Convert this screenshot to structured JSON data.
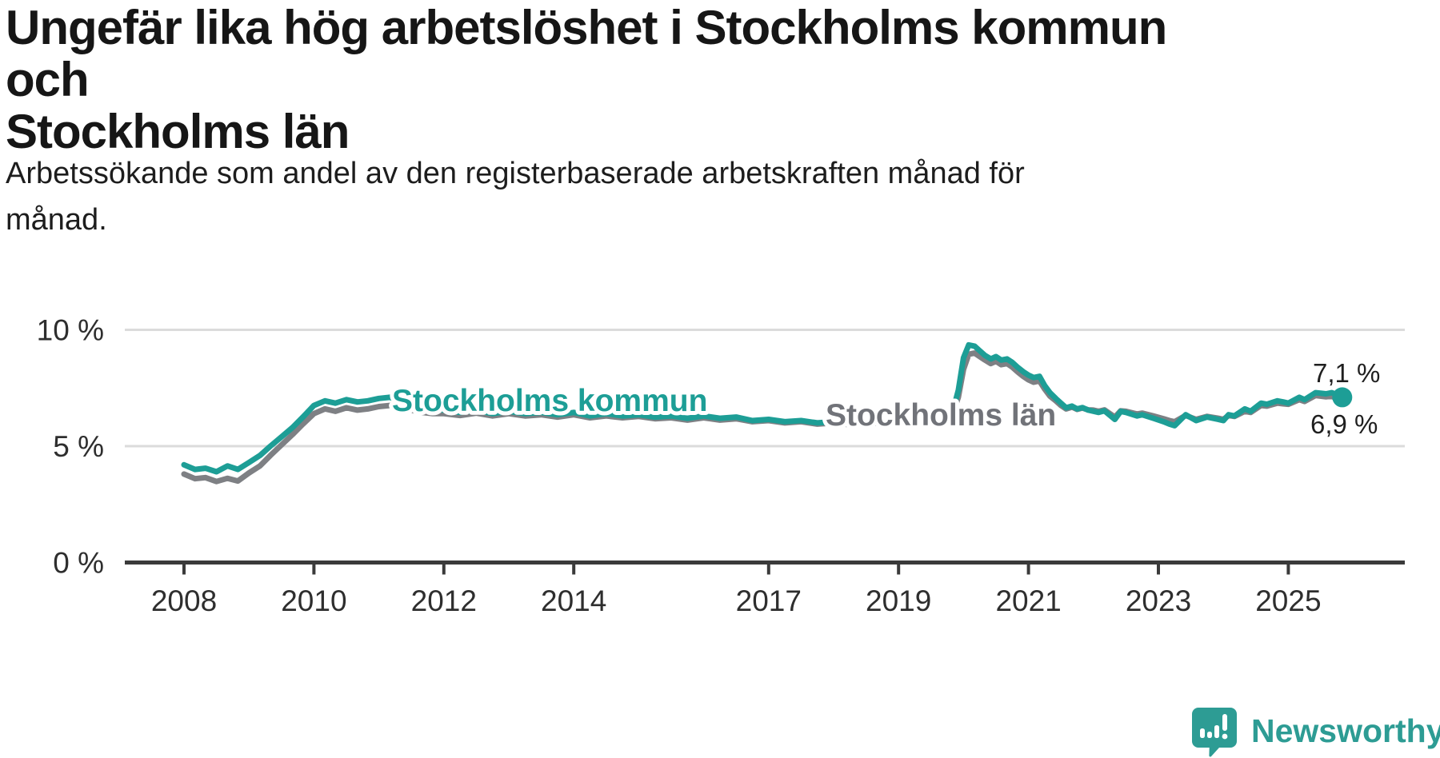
{
  "header": {
    "title_lines": [
      "Ungefär lika hög arbetslöshet i Stockholms kommun och",
      "Stockholms län"
    ],
    "subtitle_lines": [
      "Arbetssökande som andel av den registerbaserade arbetskraften månad för",
      "månad."
    ]
  },
  "footer": {
    "brand": "Newsworthy",
    "logo_icon": "newsworthy-speech-bubble-bar-chart-icon"
  },
  "colors": {
    "kommun": "#1d9e96",
    "lan_line": "#7e8084",
    "lan_label": "#717379",
    "grid": "#dbdbdb",
    "axis": "#3a3a3a",
    "tick_text": "#2e2e2e",
    "value_text": "#1f1f1f",
    "brand": "#2d9c94"
  },
  "chart_data": {
    "type": "line",
    "unit": "%",
    "grid": "horizontal-only",
    "legend_position": "inline-labels",
    "ylim": [
      0,
      10.9
    ],
    "xlim": [
      2007.1,
      2026.9
    ],
    "y_ticks": [
      0,
      5,
      10
    ],
    "y_tick_labels": [
      "0 %",
      "5 %",
      "10 %"
    ],
    "x_ticks": [
      2008,
      2010,
      2012,
      2014,
      2017,
      2019,
      2021,
      2023,
      2025
    ],
    "x_tick_labels": [
      "2008",
      "2010",
      "2012",
      "2014",
      "2017",
      "2019",
      "2021",
      "2023",
      "2025"
    ],
    "series": [
      {
        "name": "Stockholms län",
        "end_label": "6,9 %",
        "end_value": 6.9,
        "points": [
          [
            2008.0,
            3.8
          ],
          [
            2008.17,
            3.6
          ],
          [
            2008.33,
            3.65
          ],
          [
            2008.5,
            3.48
          ],
          [
            2008.67,
            3.62
          ],
          [
            2008.83,
            3.5
          ],
          [
            2009.0,
            3.85
          ],
          [
            2009.17,
            4.15
          ],
          [
            2009.33,
            4.6
          ],
          [
            2009.5,
            5.05
          ],
          [
            2009.67,
            5.5
          ],
          [
            2009.83,
            5.95
          ],
          [
            2010.0,
            6.4
          ],
          [
            2010.17,
            6.6
          ],
          [
            2010.33,
            6.5
          ],
          [
            2010.5,
            6.65
          ],
          [
            2010.67,
            6.55
          ],
          [
            2010.83,
            6.6
          ],
          [
            2011.0,
            6.7
          ],
          [
            2011.17,
            6.75
          ],
          [
            2011.33,
            6.65
          ],
          [
            2011.5,
            6.55
          ],
          [
            2011.67,
            6.45
          ],
          [
            2011.83,
            6.4
          ],
          [
            2012.0,
            6.4
          ],
          [
            2012.25,
            6.32
          ],
          [
            2012.5,
            6.42
          ],
          [
            2012.75,
            6.3
          ],
          [
            2013.0,
            6.4
          ],
          [
            2013.25,
            6.3
          ],
          [
            2013.5,
            6.35
          ],
          [
            2013.75,
            6.25
          ],
          [
            2014.0,
            6.35
          ],
          [
            2014.25,
            6.22
          ],
          [
            2014.5,
            6.3
          ],
          [
            2014.75,
            6.22
          ],
          [
            2015.0,
            6.28
          ],
          [
            2015.25,
            6.18
          ],
          [
            2015.5,
            6.22
          ],
          [
            2015.75,
            6.12
          ],
          [
            2016.0,
            6.22
          ],
          [
            2016.25,
            6.12
          ],
          [
            2016.5,
            6.18
          ],
          [
            2016.75,
            6.05
          ],
          [
            2017.0,
            6.1
          ],
          [
            2017.25,
            6.0
          ],
          [
            2017.5,
            6.05
          ],
          [
            2017.75,
            5.95
          ],
          [
            2018.0,
            6.0
          ],
          [
            2018.25,
            5.92
          ],
          [
            2018.5,
            6.0
          ],
          [
            2018.75,
            5.97
          ],
          [
            2019.0,
            6.07
          ],
          [
            2019.17,
            6.12
          ],
          [
            2019.33,
            6.07
          ],
          [
            2019.5,
            6.12
          ],
          [
            2019.67,
            6.17
          ],
          [
            2019.83,
            6.4
          ],
          [
            2019.92,
            7.1
          ],
          [
            2020.0,
            8.3
          ],
          [
            2020.08,
            8.95
          ],
          [
            2020.17,
            9.0
          ],
          [
            2020.25,
            8.85
          ],
          [
            2020.33,
            8.7
          ],
          [
            2020.42,
            8.55
          ],
          [
            2020.5,
            8.65
          ],
          [
            2020.58,
            8.5
          ],
          [
            2020.67,
            8.55
          ],
          [
            2020.75,
            8.4
          ],
          [
            2020.83,
            8.2
          ],
          [
            2020.92,
            8.0
          ],
          [
            2021.0,
            7.85
          ],
          [
            2021.08,
            7.75
          ],
          [
            2021.17,
            7.8
          ],
          [
            2021.25,
            7.45
          ],
          [
            2021.33,
            7.15
          ],
          [
            2021.42,
            6.95
          ],
          [
            2021.5,
            6.75
          ],
          [
            2021.58,
            6.6
          ],
          [
            2021.67,
            6.68
          ],
          [
            2021.75,
            6.58
          ],
          [
            2021.83,
            6.64
          ],
          [
            2021.92,
            6.56
          ],
          [
            2022.0,
            6.55
          ],
          [
            2022.08,
            6.5
          ],
          [
            2022.17,
            6.56
          ],
          [
            2022.33,
            6.25
          ],
          [
            2022.42,
            6.52
          ],
          [
            2022.5,
            6.5
          ],
          [
            2022.67,
            6.38
          ],
          [
            2022.75,
            6.42
          ],
          [
            2022.92,
            6.3
          ],
          [
            2023.08,
            6.18
          ],
          [
            2023.17,
            6.1
          ],
          [
            2023.25,
            6.05
          ],
          [
            2023.42,
            6.32
          ],
          [
            2023.58,
            6.15
          ],
          [
            2023.75,
            6.28
          ],
          [
            2023.92,
            6.2
          ],
          [
            2024.0,
            6.15
          ],
          [
            2024.08,
            6.32
          ],
          [
            2024.17,
            6.28
          ],
          [
            2024.33,
            6.5
          ],
          [
            2024.42,
            6.45
          ],
          [
            2024.58,
            6.75
          ],
          [
            2024.67,
            6.72
          ],
          [
            2024.83,
            6.85
          ],
          [
            2024.92,
            6.82
          ],
          [
            2025.0,
            6.8
          ],
          [
            2025.17,
            7.0
          ],
          [
            2025.25,
            6.92
          ],
          [
            2025.42,
            7.18
          ],
          [
            2025.58,
            7.12
          ],
          [
            2025.67,
            7.15
          ],
          [
            2025.83,
            6.9
          ]
        ]
      },
      {
        "name": "Stockholms kommun",
        "end_label": "7,1 %",
        "end_value": 7.1,
        "end_dot": true,
        "points": [
          [
            2008.0,
            4.2
          ],
          [
            2008.17,
            4.0
          ],
          [
            2008.33,
            4.05
          ],
          [
            2008.5,
            3.9
          ],
          [
            2008.67,
            4.15
          ],
          [
            2008.83,
            4.0
          ],
          [
            2009.0,
            4.3
          ],
          [
            2009.17,
            4.6
          ],
          [
            2009.33,
            5.0
          ],
          [
            2009.5,
            5.4
          ],
          [
            2009.67,
            5.8
          ],
          [
            2009.83,
            6.25
          ],
          [
            2010.0,
            6.75
          ],
          [
            2010.17,
            6.95
          ],
          [
            2010.33,
            6.85
          ],
          [
            2010.5,
            7.0
          ],
          [
            2010.67,
            6.9
          ],
          [
            2010.83,
            6.95
          ],
          [
            2011.0,
            7.05
          ],
          [
            2011.17,
            7.1
          ],
          [
            2011.33,
            6.95
          ],
          [
            2011.5,
            6.85
          ],
          [
            2011.67,
            6.7
          ],
          [
            2011.83,
            6.6
          ],
          [
            2012.0,
            6.55
          ],
          [
            2012.25,
            6.45
          ],
          [
            2012.5,
            6.55
          ],
          [
            2012.75,
            6.4
          ],
          [
            2013.0,
            6.5
          ],
          [
            2013.25,
            6.4
          ],
          [
            2013.5,
            6.45
          ],
          [
            2013.75,
            6.35
          ],
          [
            2014.0,
            6.45
          ],
          [
            2014.25,
            6.3
          ],
          [
            2014.5,
            6.4
          ],
          [
            2014.75,
            6.3
          ],
          [
            2015.0,
            6.35
          ],
          [
            2015.25,
            6.25
          ],
          [
            2015.5,
            6.3
          ],
          [
            2015.75,
            6.2
          ],
          [
            2016.0,
            6.3
          ],
          [
            2016.25,
            6.2
          ],
          [
            2016.5,
            6.25
          ],
          [
            2016.75,
            6.1
          ],
          [
            2017.0,
            6.15
          ],
          [
            2017.25,
            6.05
          ],
          [
            2017.5,
            6.1
          ],
          [
            2017.75,
            6.0
          ],
          [
            2018.0,
            6.05
          ],
          [
            2018.25,
            5.95
          ],
          [
            2018.5,
            6.05
          ],
          [
            2018.75,
            6.0
          ],
          [
            2019.0,
            6.1
          ],
          [
            2019.17,
            6.15
          ],
          [
            2019.33,
            6.1
          ],
          [
            2019.5,
            6.15
          ],
          [
            2019.67,
            6.2
          ],
          [
            2019.83,
            6.45
          ],
          [
            2019.92,
            7.4
          ],
          [
            2020.0,
            8.8
          ],
          [
            2020.08,
            9.35
          ],
          [
            2020.17,
            9.3
          ],
          [
            2020.25,
            9.1
          ],
          [
            2020.33,
            8.9
          ],
          [
            2020.42,
            8.75
          ],
          [
            2020.5,
            8.85
          ],
          [
            2020.58,
            8.7
          ],
          [
            2020.67,
            8.75
          ],
          [
            2020.75,
            8.6
          ],
          [
            2020.83,
            8.4
          ],
          [
            2020.92,
            8.2
          ],
          [
            2021.0,
            8.05
          ],
          [
            2021.08,
            7.95
          ],
          [
            2021.17,
            8.0
          ],
          [
            2021.25,
            7.6
          ],
          [
            2021.33,
            7.3
          ],
          [
            2021.42,
            7.05
          ],
          [
            2021.5,
            6.85
          ],
          [
            2021.58,
            6.65
          ],
          [
            2021.67,
            6.72
          ],
          [
            2021.75,
            6.6
          ],
          [
            2021.83,
            6.66
          ],
          [
            2021.92,
            6.55
          ],
          [
            2022.0,
            6.5
          ],
          [
            2022.08,
            6.45
          ],
          [
            2022.17,
            6.52
          ],
          [
            2022.33,
            6.15
          ],
          [
            2022.42,
            6.5
          ],
          [
            2022.5,
            6.45
          ],
          [
            2022.67,
            6.3
          ],
          [
            2022.75,
            6.35
          ],
          [
            2022.92,
            6.2
          ],
          [
            2023.08,
            6.05
          ],
          [
            2023.17,
            5.95
          ],
          [
            2023.25,
            5.88
          ],
          [
            2023.42,
            6.35
          ],
          [
            2023.58,
            6.1
          ],
          [
            2023.75,
            6.25
          ],
          [
            2023.92,
            6.15
          ],
          [
            2024.0,
            6.1
          ],
          [
            2024.08,
            6.35
          ],
          [
            2024.17,
            6.3
          ],
          [
            2024.33,
            6.6
          ],
          [
            2024.42,
            6.5
          ],
          [
            2024.58,
            6.85
          ],
          [
            2024.67,
            6.8
          ],
          [
            2024.83,
            6.95
          ],
          [
            2024.92,
            6.9
          ],
          [
            2025.0,
            6.85
          ],
          [
            2025.17,
            7.1
          ],
          [
            2025.25,
            7.0
          ],
          [
            2025.42,
            7.3
          ],
          [
            2025.58,
            7.25
          ],
          [
            2025.67,
            7.3
          ],
          [
            2025.83,
            7.1
          ]
        ]
      }
    ]
  }
}
